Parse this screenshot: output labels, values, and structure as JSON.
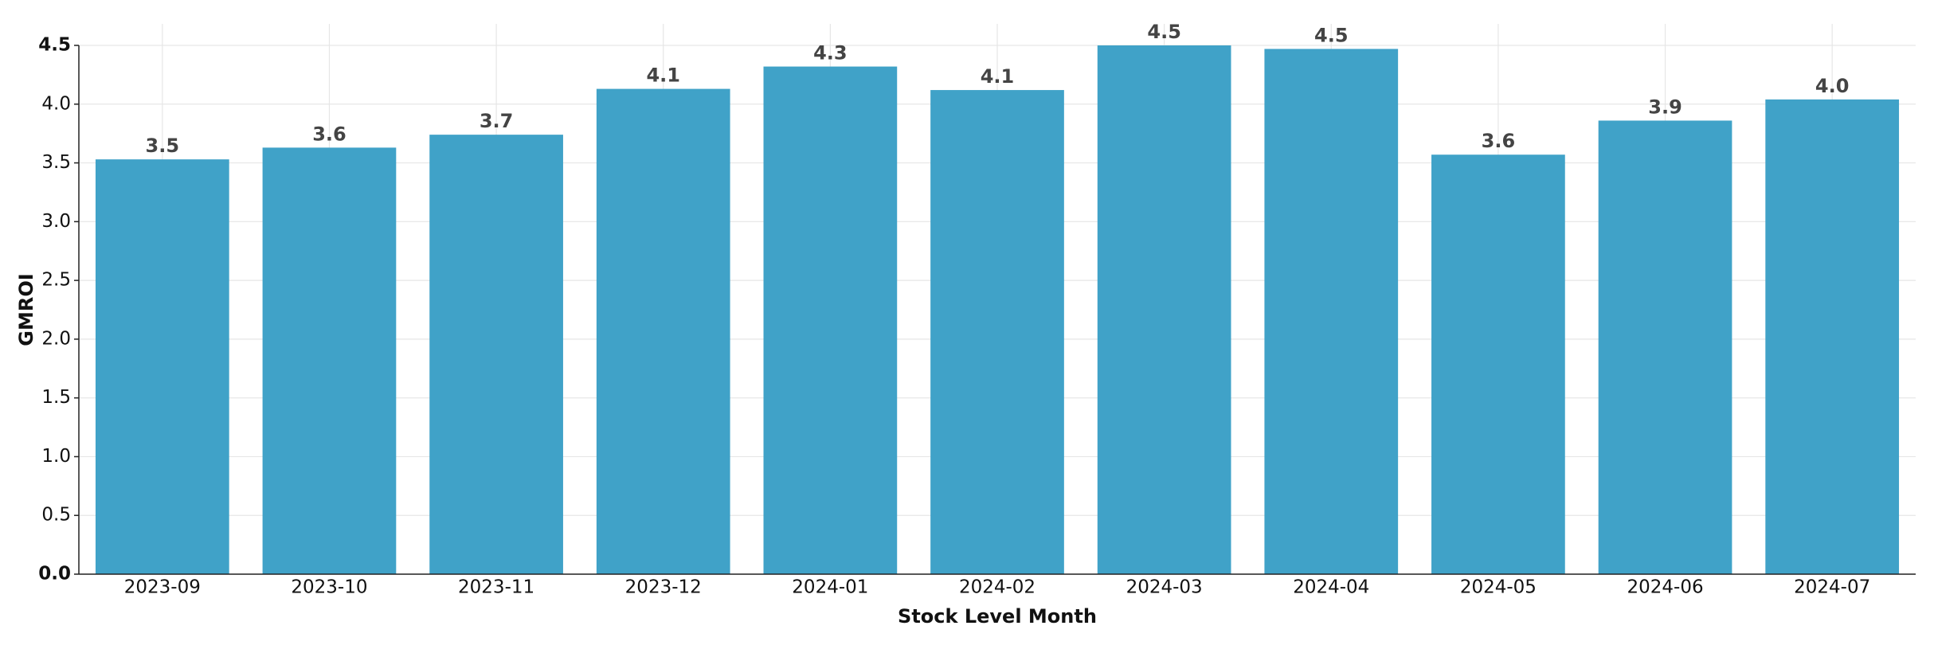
{
  "chart_data": {
    "type": "bar",
    "x_label": "Stock Level Month",
    "y_label": "GMROI",
    "categories": [
      "2023-09",
      "2023-10",
      "2023-11",
      "2023-12",
      "2024-01",
      "2024-02",
      "2024-03",
      "2024-04",
      "2024-05",
      "2024-06",
      "2024-07"
    ],
    "values": [
      3.53,
      3.63,
      3.74,
      4.13,
      4.32,
      4.12,
      4.5,
      4.47,
      3.57,
      3.86,
      4.04
    ],
    "value_labels": [
      "3.5",
      "3.6",
      "3.7",
      "4.1",
      "4.3",
      "4.1",
      "4.5",
      "4.5",
      "3.6",
      "3.9",
      "4.0"
    ],
    "color": "#40a2c8",
    "ylim": [
      0,
      4.5
    ],
    "yticks": [
      {
        "value": 0,
        "label": "0.0"
      },
      {
        "value": 0.5,
        "label": "0.5"
      },
      {
        "value": 1,
        "label": "1.0"
      },
      {
        "value": 1.5,
        "label": "1.5"
      },
      {
        "value": 2,
        "label": "2.0"
      },
      {
        "value": 2.5,
        "label": "2.5"
      },
      {
        "value": 3,
        "label": "3.0"
      },
      {
        "value": 3.5,
        "label": "3.5"
      },
      {
        "value": 4,
        "label": "4.0"
      },
      {
        "value": 4.5,
        "label": "4.5"
      }
    ],
    "grid": true
  }
}
